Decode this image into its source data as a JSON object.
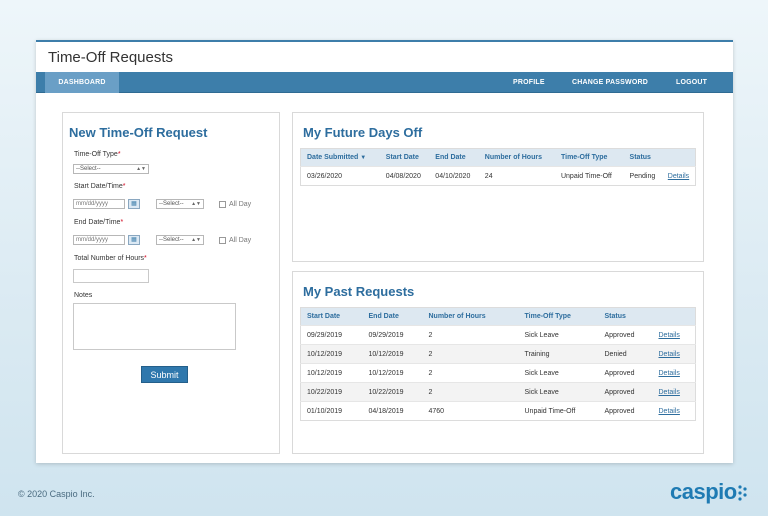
{
  "app": {
    "title": "Time-Off Requests"
  },
  "nav": {
    "dashboard": "DASHBOARD",
    "profile": "PROFILE",
    "change_password": "CHANGE PASSWORD",
    "logout": "LOGOUT"
  },
  "form": {
    "title": "New Time-Off Request",
    "type_label": "Time-Off Type",
    "type_value": "--Select--",
    "start_label": "Start Date/Time",
    "start_date_placeholder": "mm/dd/yyyy",
    "start_time_value": "--Select--",
    "start_allday": "All Day",
    "end_label": "End Date/Time",
    "end_date_placeholder": "mm/dd/yyyy",
    "end_time_value": "--Select--",
    "end_allday": "All Day",
    "hours_label": "Total Number of Hours",
    "notes_label": "Notes",
    "required_mark": "*",
    "submit": "Submit"
  },
  "future": {
    "title": "My Future Days Off",
    "headers": {
      "date_submitted": "Date Submitted",
      "start_date": "Start Date",
      "end_date": "End Date",
      "hours": "Number of Hours",
      "type": "Time-Off Type",
      "status": "Status"
    },
    "sort_icon": "▼",
    "rows": [
      {
        "date_submitted": "03/26/2020",
        "start": "04/08/2020",
        "end": "04/10/2020",
        "hours": "24",
        "type": "Unpaid Time-Off",
        "status": "Pending",
        "link": "Details"
      }
    ]
  },
  "past": {
    "title": "My Past Requests",
    "headers": {
      "start_date": "Start Date",
      "end_date": "End Date",
      "hours": "Number of Hours",
      "type": "Time-Off Type",
      "status": "Status"
    },
    "rows": [
      {
        "start": "09/29/2019",
        "end": "09/29/2019",
        "hours": "2",
        "type": "Sick Leave",
        "status": "Approved",
        "link": "Details"
      },
      {
        "start": "10/12/2019",
        "end": "10/12/2019",
        "hours": "2",
        "type": "Training",
        "status": "Denied",
        "link": "Details"
      },
      {
        "start": "10/12/2019",
        "end": "10/12/2019",
        "hours": "2",
        "type": "Sick Leave",
        "status": "Approved",
        "link": "Details"
      },
      {
        "start": "10/22/2019",
        "end": "10/22/2019",
        "hours": "2",
        "type": "Sick Leave",
        "status": "Approved",
        "link": "Details"
      },
      {
        "start": "01/10/2019",
        "end": "04/18/2019",
        "hours": "4760",
        "type": "Unpaid Time-Off",
        "status": "Approved",
        "link": "Details"
      }
    ]
  },
  "footer": {
    "copyright": "© 2020 Caspio Inc.",
    "logo": "caspio"
  },
  "colors": {
    "accent": "#3d7eaa",
    "title_blue": "#2d6d9e",
    "required": "#d0021b"
  }
}
